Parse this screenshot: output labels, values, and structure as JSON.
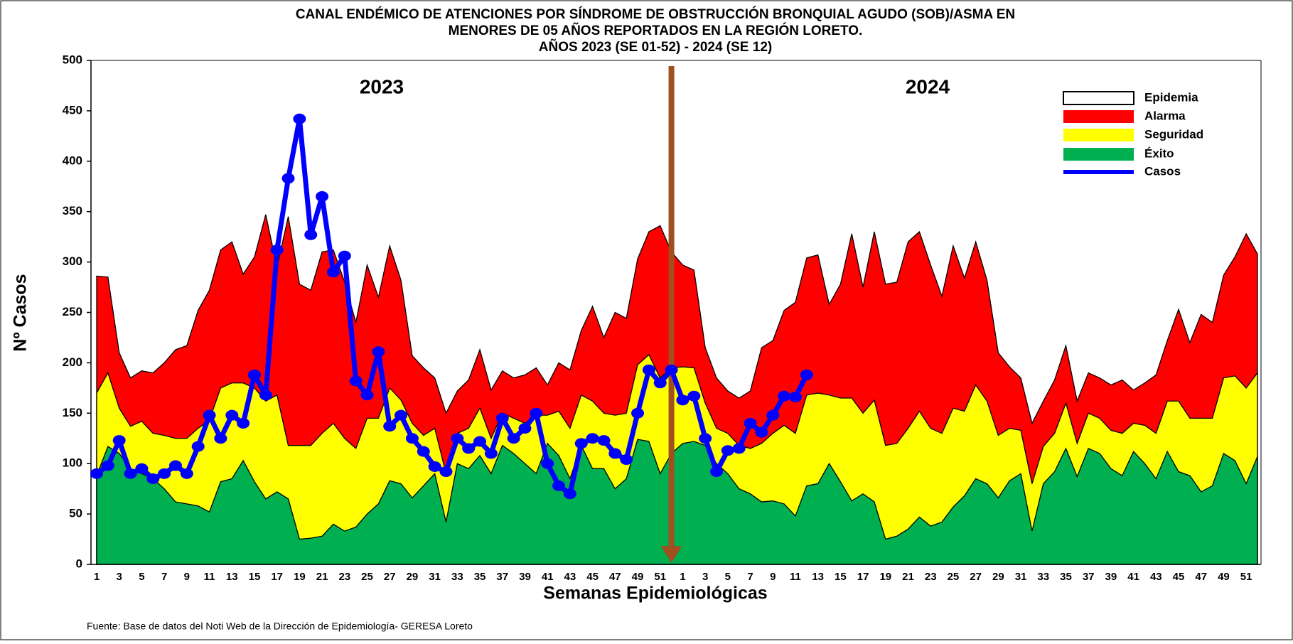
{
  "chart_data": {
    "type": "area",
    "title": [
      "CANAL ENDÉMICO DE ATENCIONES POR SÍNDROME DE OBSTRUCCIÓN BRONQUIAL AGUDO (SOB)/ASMA EN",
      "MENORES DE 05 AÑOS REPORTADOS EN LA REGIÓN LORETO.",
      "AÑOS 2023  (SE 01-52) - 2024 (SE 12)"
    ],
    "ylabel": "Nº Casos",
    "xlabel": "Semanas Epidemiológicas",
    "annotations": [
      "2023",
      "2024"
    ],
    "source": "Fuente: Base de datos del Noti Web de la Dirección de Epidemiología- GERESA Loreto",
    "categories": [
      "1",
      null,
      "3",
      null,
      "5",
      null,
      "7",
      null,
      "9",
      null,
      "11",
      null,
      "13",
      null,
      "15",
      null,
      "17",
      null,
      "19",
      null,
      "21",
      null,
      "23",
      null,
      "25",
      null,
      "27",
      null,
      "29",
      null,
      "31",
      null,
      "33",
      null,
      "35",
      null,
      "37",
      null,
      "39",
      null,
      "41",
      null,
      "43",
      null,
      "45",
      null,
      "47",
      null,
      "49",
      null,
      "51",
      null,
      "1",
      null,
      "3",
      null,
      "5",
      null,
      "7",
      null,
      "9",
      null,
      "11",
      null,
      "13",
      null,
      "15",
      null,
      "17",
      null,
      "19",
      null,
      "21",
      null,
      "23",
      null,
      "25",
      null,
      "27",
      null,
      "29",
      null,
      "31",
      null,
      "33",
      null,
      "35",
      null,
      "37",
      null,
      "39",
      null,
      "41",
      null,
      "43",
      null,
      "45",
      null,
      "47",
      null,
      "49",
      null,
      "51",
      null
    ],
    "ylim": [
      0,
      500
    ],
    "yticks": [
      0,
      50,
      100,
      150,
      200,
      250,
      300,
      350,
      400,
      450,
      500
    ],
    "legend": "top-right",
    "epidemia": {
      "name": "Epidemia",
      "color": "#ffffff"
    },
    "series": [
      {
        "name": "Alarma",
        "color": "#ff0000",
        "values": [
          286,
          285,
          210,
          185,
          192,
          190,
          200,
          213,
          217,
          252,
          272,
          312,
          320,
          288,
          305,
          347,
          295,
          345,
          278,
          272,
          310,
          312,
          280,
          240,
          297,
          265,
          316,
          282,
          207,
          195,
          185,
          150,
          172,
          183,
          213,
          173,
          192,
          185,
          188,
          195,
          178,
          200,
          193,
          232,
          256,
          225,
          250,
          244,
          303,
          330,
          336,
          310,
          297,
          292,
          215,
          185,
          172,
          165,
          172,
          215,
          222,
          252,
          260,
          304,
          307,
          258,
          278,
          328,
          275,
          330,
          278,
          280,
          320,
          330,
          297,
          266,
          316,
          284,
          320,
          282,
          210,
          196,
          185,
          140,
          162,
          183,
          217,
          162,
          190,
          185,
          178,
          183,
          173,
          180,
          188,
          222,
          253,
          220,
          248,
          240,
          287,
          305,
          328,
          308
        ]
      },
      {
        "name": "Seguridad",
        "color": "#ffff00",
        "values": [
          170,
          190,
          155,
          137,
          142,
          130,
          128,
          125,
          125,
          135,
          143,
          175,
          180,
          180,
          175,
          162,
          168,
          118,
          118,
          118,
          130,
          140,
          125,
          115,
          145,
          145,
          175,
          163,
          140,
          128,
          135,
          90,
          130,
          135,
          155,
          125,
          150,
          145,
          140,
          148,
          148,
          152,
          135,
          168,
          162,
          150,
          148,
          150,
          198,
          208,
          185,
          195,
          196,
          195,
          160,
          135,
          130,
          118,
          115,
          120,
          130,
          138,
          130,
          168,
          170,
          168,
          165,
          165,
          150,
          163,
          118,
          120,
          135,
          152,
          135,
          130,
          155,
          152,
          178,
          162,
          128,
          135,
          133,
          80,
          117,
          130,
          160,
          120,
          150,
          145,
          133,
          130,
          140,
          138,
          130,
          162,
          162,
          145,
          145,
          145,
          185,
          187,
          175,
          190
        ]
      },
      {
        "name": "Éxito",
        "color": "#00b050",
        "values": [
          88,
          117,
          110,
          95,
          90,
          85,
          75,
          62,
          60,
          58,
          52,
          82,
          85,
          103,
          82,
          65,
          72,
          65,
          25,
          26,
          28,
          40,
          33,
          37,
          50,
          60,
          83,
          80,
          66,
          78,
          90,
          42,
          100,
          95,
          108,
          90,
          118,
          110,
          100,
          90,
          120,
          108,
          85,
          118,
          95,
          95,
          75,
          85,
          124,
          122,
          90,
          110,
          120,
          122,
          118,
          100,
          90,
          75,
          70,
          62,
          63,
          60,
          48,
          78,
          80,
          100,
          82,
          63,
          70,
          62,
          25,
          28,
          35,
          47,
          38,
          42,
          57,
          68,
          85,
          80,
          66,
          83,
          90,
          33,
          80,
          92,
          115,
          87,
          115,
          110,
          95,
          88,
          112,
          100,
          85,
          112,
          92,
          88,
          72,
          78,
          110,
          103,
          80,
          107
        ]
      },
      {
        "name": "Casos",
        "color": "#0000ff",
        "values": [
          90,
          98,
          123,
          90,
          95,
          85,
          90,
          98,
          90,
          117,
          148,
          125,
          148,
          140,
          188,
          168,
          312,
          383,
          442,
          327,
          365,
          290,
          306,
          182,
          168,
          211,
          137,
          148,
          125,
          112,
          97,
          92,
          125,
          115,
          122,
          110,
          145,
          125,
          135,
          150,
          100,
          78,
          70,
          120,
          125,
          123,
          110,
          104,
          150,
          193,
          180,
          193,
          163,
          167,
          125,
          92,
          113,
          115,
          140,
          131,
          148,
          167,
          166,
          188,
          null,
          null,
          null,
          null,
          null,
          null,
          null,
          null,
          null,
          null,
          null,
          null,
          null,
          null,
          null,
          null,
          null,
          null,
          null,
          null,
          null,
          null,
          null,
          null,
          null,
          null,
          null,
          null,
          null,
          null,
          null,
          null,
          null,
          null,
          null,
          null,
          null,
          null,
          null,
          null
        ]
      }
    ]
  }
}
